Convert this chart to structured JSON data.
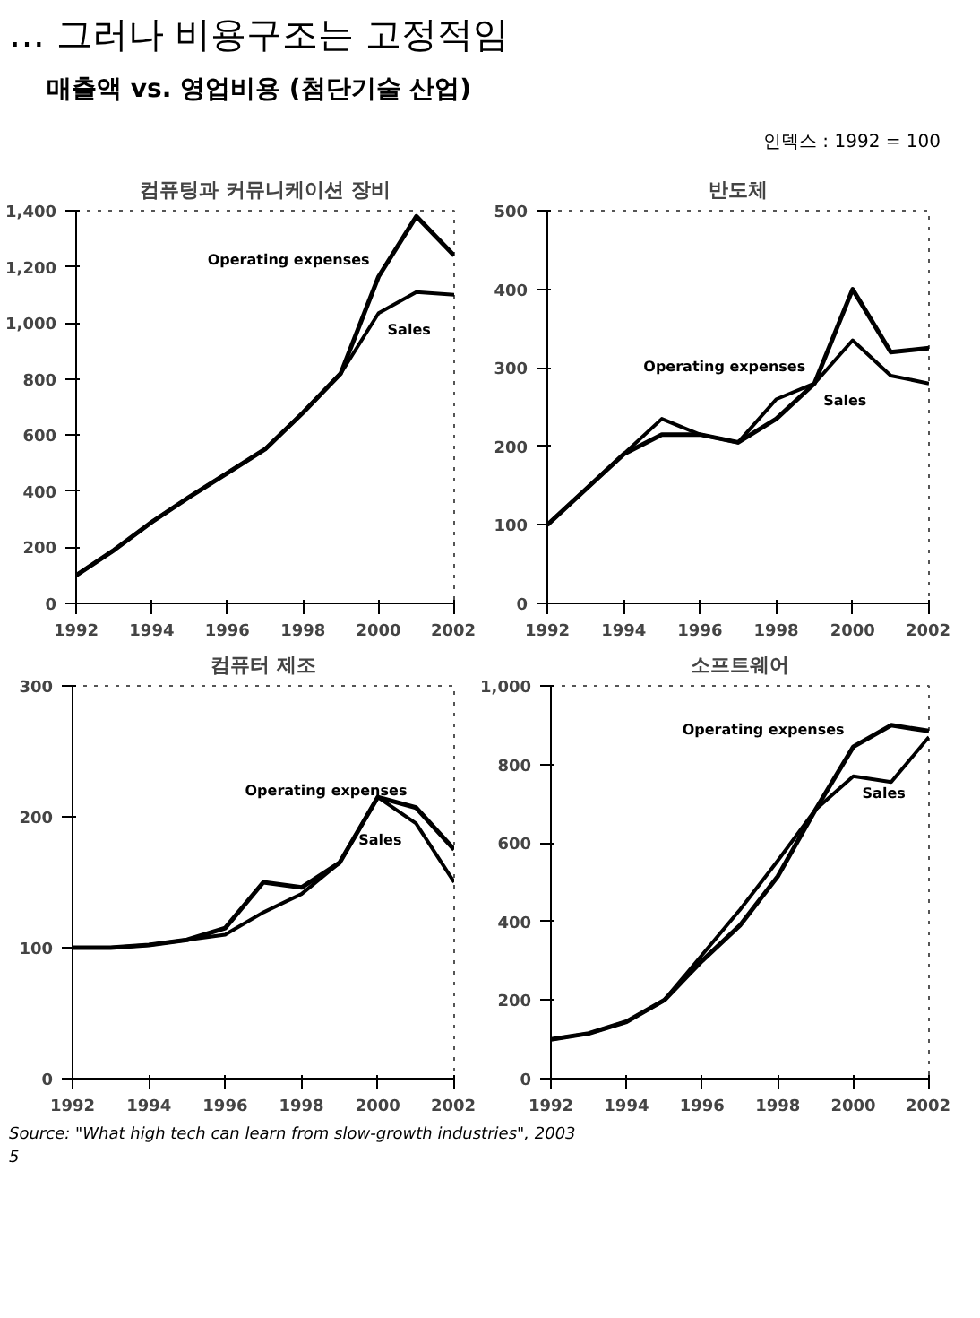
{
  "chart_data": [
    {
      "type": "other",
      "title": "… 그러나 비용구조는 고정적임",
      "subtitle": "매출액 vs. 영업비용 (첨단기술 산업)",
      "annotations": [
        "인덱스 : 1992 = 100",
        "Source: \"What high tech can learn from slow-growth industries\", 2003",
        "5"
      ]
    },
    {
      "type": "line",
      "title": "컴퓨팅과 커뮤니케이션 장비",
      "x": [
        1992,
        1993,
        1994,
        1995,
        1996,
        1997,
        1998,
        1999,
        2000,
        2001,
        2002
      ],
      "xlim": [
        1992,
        2002
      ],
      "xticks": [
        1992,
        1994,
        1996,
        1998,
        2000,
        2002
      ],
      "ylim": [
        0,
        1400
      ],
      "yticks": [
        0,
        200,
        400,
        600,
        800,
        {
          "value": 1000,
          "label": "1,000"
        },
        {
          "value": 1200,
          "label": "1,200"
        },
        {
          "value": 1400,
          "label": "1,400"
        }
      ],
      "grid": false,
      "series": [
        {
          "name": "Sales",
          "color": "#000000",
          "values": [
            100,
            190,
            290,
            380,
            465,
            550,
            680,
            820,
            1035,
            1110,
            1100
          ]
        },
        {
          "name": "Operating expenses",
          "color": "#000000",
          "values": [
            100,
            190,
            290,
            380,
            465,
            550,
            680,
            820,
            1165,
            1380,
            1240
          ]
        }
      ]
    },
    {
      "type": "line",
      "title": "반도체",
      "x": [
        1992,
        1993,
        1994,
        1995,
        1996,
        1997,
        1998,
        1999,
        2000,
        2001,
        2002
      ],
      "xlim": [
        1992,
        2002
      ],
      "xticks": [
        1992,
        1994,
        1996,
        1998,
        2000,
        2002
      ],
      "ylim": [
        0,
        500
      ],
      "yticks": [
        0,
        100,
        200,
        300,
        400,
        500
      ],
      "grid": false,
      "series": [
        {
          "name": "Sales",
          "color": "#000000",
          "values": [
            100,
            145,
            190,
            235,
            215,
            205,
            260,
            280,
            335,
            290,
            280
          ]
        },
        {
          "name": "Operating expenses",
          "color": "#000000",
          "values": [
            100,
            145,
            190,
            215,
            215,
            205,
            235,
            280,
            400,
            320,
            325
          ]
        }
      ]
    },
    {
      "type": "line",
      "title": "컴퓨터 제조",
      "x": [
        1992,
        1993,
        1994,
        1995,
        1996,
        1997,
        1998,
        1999,
        2000,
        2001,
        2002
      ],
      "xlim": [
        1992,
        2002
      ],
      "xticks": [
        1992,
        1994,
        1996,
        1998,
        2000,
        2002
      ],
      "ylim": [
        0,
        300
      ],
      "yticks": [
        0,
        100,
        200,
        300
      ],
      "grid": false,
      "series": [
        {
          "name": "Sales",
          "color": "#000000",
          "values": [
            100,
            100,
            102,
            106,
            110,
            127,
            141,
            165,
            215,
            195,
            150
          ]
        },
        {
          "name": "Operating expenses",
          "color": "#000000",
          "values": [
            100,
            100,
            102,
            106,
            115,
            150,
            146,
            165,
            215,
            207,
            175
          ]
        }
      ]
    },
    {
      "type": "line",
      "title": "소프트웨어",
      "x": [
        1992,
        1993,
        1994,
        1995,
        1996,
        1997,
        1998,
        1999,
        2000,
        2001,
        2002
      ],
      "xlim": [
        1992,
        2002
      ],
      "xticks": [
        1992,
        1994,
        1996,
        1998,
        2000,
        2002
      ],
      "ylim": [
        0,
        1000
      ],
      "yticks": [
        0,
        200,
        400,
        600,
        800,
        {
          "value": 1000,
          "label": "1,000"
        }
      ],
      "grid": false,
      "series": [
        {
          "name": "Sales",
          "color": "#000000",
          "values": [
            100,
            115,
            145,
            200,
            315,
            430,
            555,
            685,
            770,
            755,
            870
          ]
        },
        {
          "name": "Operating expenses",
          "color": "#000000",
          "values": [
            100,
            115,
            145,
            200,
            300,
            390,
            515,
            685,
            845,
            900,
            885
          ]
        }
      ]
    }
  ]
}
